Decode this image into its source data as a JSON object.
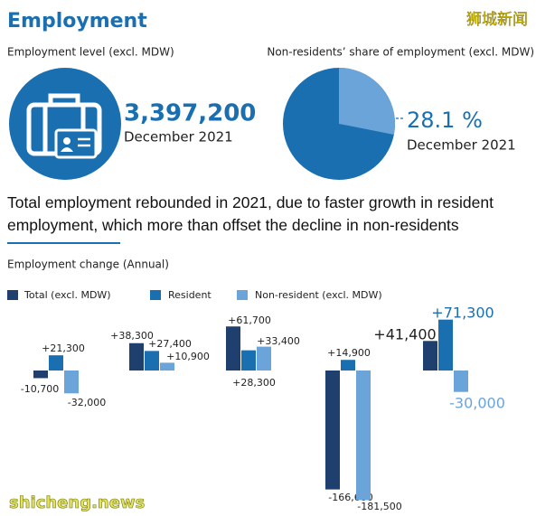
{
  "title": "Employment",
  "watermark_top": "狮城新闻",
  "watermark_bottom": "shicheng.news",
  "employment_level": {
    "label": "Employment level (excl. MDW)",
    "value": "3,397,200",
    "date": "December 2021"
  },
  "headline": "Total employment rebounded in 2021, due to faster growth in resident employment,  which more than offset the decline in non-residents",
  "chart_data": [
    {
      "type": "pie",
      "title": "Non-residents’ share of employment (excl. MDW)",
      "subtitle": "December 2021",
      "values": [
        28.1
      ],
      "value_labels": [
        "28.1 %"
      ],
      "colors": [
        "#6aa4d8"
      ],
      "background_color": "#1a6fb0"
    },
    {
      "type": "bar",
      "title": "Employment change (Annual)",
      "categories": [
        null,
        null,
        null,
        null,
        null
      ],
      "series": [
        {
          "name": "Total (excl. MDW)",
          "color": "#1f3f6e",
          "values": [
            -10700,
            38300,
            61700,
            -166600,
            41400
          ],
          "value_labels": [
            "-10,700",
            "+38,300",
            "+61,700",
            "-166,600",
            "+41,400"
          ]
        },
        {
          "name": "Resident",
          "color": "#1a6fb0",
          "values": [
            21300,
            27400,
            28300,
            14900,
            71300
          ],
          "value_labels": [
            "+21,300",
            "+27,400",
            "+28,300",
            "+14,900",
            "+71,300"
          ]
        },
        {
          "name": "Non-resident (excl. MDW)",
          "color": "#6aa4d8",
          "values": [
            -32000,
            10900,
            33400,
            -181500,
            -30000
          ],
          "value_labels": [
            "-32,000",
            "+10,900",
            "+33,400",
            "-181,500",
            "-30,000"
          ]
        }
      ]
    }
  ]
}
